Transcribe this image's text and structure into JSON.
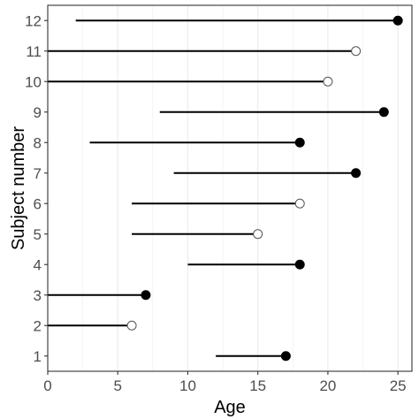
{
  "chart_data": {
    "type": "scatter",
    "subtype": "horizontal-segment-lollipop",
    "title": "",
    "xlabel": "Age",
    "ylabel": "Subject number",
    "xlim": [
      0,
      26
    ],
    "ylim": [
      0.5,
      12.5
    ],
    "x_ticks": [
      0,
      5,
      10,
      15,
      20,
      25
    ],
    "y_ticks": [
      1,
      2,
      3,
      4,
      5,
      6,
      7,
      8,
      9,
      10,
      11,
      12
    ],
    "grid": "vertical-only",
    "legend": "none",
    "subjects": [
      {
        "subject": 1,
        "start": 12,
        "end": 17,
        "filled": true
      },
      {
        "subject": 2,
        "start": 0,
        "end": 6,
        "filled": false
      },
      {
        "subject": 3,
        "start": 0,
        "end": 7,
        "filled": true
      },
      {
        "subject": 4,
        "start": 10,
        "end": 18,
        "filled": true
      },
      {
        "subject": 5,
        "start": 6,
        "end": 15,
        "filled": false
      },
      {
        "subject": 6,
        "start": 6,
        "end": 18,
        "filled": false
      },
      {
        "subject": 7,
        "start": 9,
        "end": 22,
        "filled": true
      },
      {
        "subject": 8,
        "start": 3,
        "end": 18,
        "filled": true
      },
      {
        "subject": 9,
        "start": 8,
        "end": 24,
        "filled": true
      },
      {
        "subject": 10,
        "start": 0,
        "end": 20,
        "filled": false
      },
      {
        "subject": 11,
        "start": 0,
        "end": 22,
        "filled": false
      },
      {
        "subject": 12,
        "start": 2,
        "end": 25,
        "filled": true
      }
    ]
  },
  "colors": {
    "line": "#000000",
    "filled_point": "#000000",
    "open_point_fill": "#ffffff",
    "open_point_stroke": "#555555",
    "panel_border": "#333333",
    "grid": "#ebebeb"
  }
}
